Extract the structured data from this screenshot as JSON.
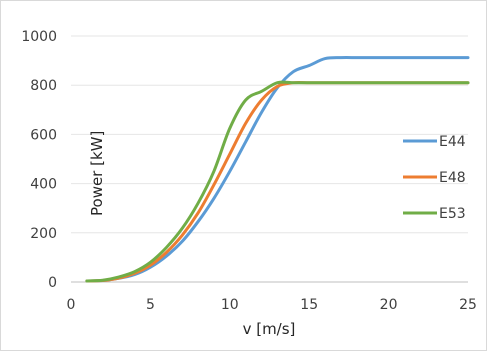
{
  "chart_data": {
    "type": "line",
    "title": "",
    "xlabel": "v [m/s]",
    "ylabel": "Power [kW]",
    "xlim": [
      0,
      25
    ],
    "ylim": [
      0,
      1000
    ],
    "xticks": [
      0,
      5,
      10,
      15,
      20,
      25
    ],
    "yticks": [
      0,
      200,
      400,
      600,
      800,
      1000
    ],
    "grid": "horizontal",
    "legend_position": "right",
    "series": [
      {
        "name": "E44",
        "color": "#5b9bd5",
        "x": [
          1,
          2,
          3,
          4,
          5,
          6,
          7,
          8,
          9,
          10,
          11,
          12,
          13,
          14,
          15,
          16,
          17,
          18,
          19,
          20,
          21,
          22,
          23,
          24,
          25
        ],
        "y": [
          4,
          6,
          15,
          30,
          60,
          105,
          165,
          245,
          340,
          450,
          570,
          690,
          790,
          855,
          880,
          908,
          912,
          912,
          912,
          912,
          912,
          912,
          912,
          912,
          912
        ]
      },
      {
        "name": "E48",
        "color": "#ed7d31",
        "x": [
          1,
          2,
          3,
          4,
          5,
          6,
          7,
          8,
          9,
          10,
          11,
          12,
          13,
          14,
          15,
          16,
          17,
          18,
          19,
          20,
          21,
          22,
          23,
          24,
          25
        ],
        "y": [
          4,
          6,
          16,
          35,
          68,
          120,
          190,
          280,
          395,
          520,
          645,
          740,
          795,
          810,
          810,
          810,
          810,
          810,
          810,
          810,
          810,
          810,
          810,
          810,
          810
        ]
      },
      {
        "name": "E53",
        "color": "#70ad47",
        "x": [
          1,
          2,
          3,
          4,
          5,
          6,
          7,
          8,
          9,
          10,
          11,
          12,
          13,
          14,
          15,
          16,
          17,
          18,
          19,
          20,
          21,
          22,
          23,
          24,
          25
        ],
        "y": [
          4,
          7,
          20,
          42,
          80,
          140,
          218,
          320,
          450,
          625,
          740,
          775,
          810,
          810,
          810,
          810,
          810,
          810,
          810,
          810,
          810,
          810,
          810,
          810,
          810
        ]
      }
    ]
  }
}
